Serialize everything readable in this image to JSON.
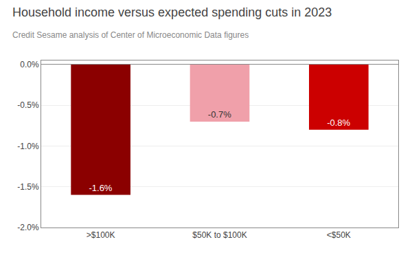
{
  "chart_data": {
    "type": "bar",
    "title": "Household income versus expected spending cuts in 2023",
    "subtitle": "Credit Sesame analysis of Center of Microeconomic Data figures",
    "categories": [
      ">$100K",
      "$50K to $100K",
      "<$50K"
    ],
    "values": [
      -1.6,
      -0.7,
      -0.8
    ],
    "value_labels": [
      "-1.6%",
      "-0.7%",
      "-0.8%"
    ],
    "data_labels": true,
    "colors": [
      "#8B0000",
      "#F0A0AA",
      "#CC0000"
    ],
    "ylim": [
      -2.0,
      0.05
    ],
    "yticks": [
      {
        "value": 0.0,
        "label": "0.0%"
      },
      {
        "value": -0.5,
        "label": "-0.5%"
      },
      {
        "value": -1.0,
        "label": "-1.0%"
      },
      {
        "value": -1.5,
        "label": "-1.5%"
      },
      {
        "value": -2.0,
        "label": "-2.0%"
      }
    ],
    "grid": true
  }
}
